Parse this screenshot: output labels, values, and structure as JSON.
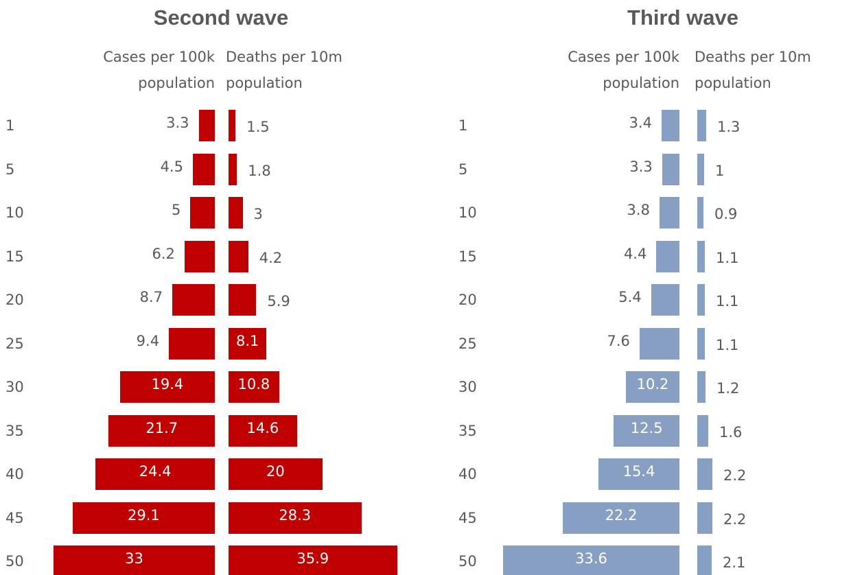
{
  "chart_data": [
    {
      "type": "butterfly",
      "title": "Second wave",
      "categories": [
        "1",
        "5",
        "10",
        "15",
        "20",
        "25",
        "30",
        "35",
        "40",
        "45",
        "50"
      ],
      "series": [
        {
          "name": "Cases per 100k population",
          "color": "#c00000",
          "values": [
            3.3,
            4.5,
            5,
            6.2,
            8.7,
            9.4,
            19.4,
            21.7,
            24.4,
            29.1,
            33
          ]
        },
        {
          "name": "Deaths per 10m population",
          "color": "#c00000",
          "values": [
            1.5,
            1.8,
            3,
            4.2,
            5.9,
            8.1,
            10.8,
            14.6,
            20,
            28.3,
            35.9
          ]
        }
      ]
    },
    {
      "type": "butterfly",
      "title": "Third wave",
      "categories": [
        "1",
        "5",
        "10",
        "15",
        "20",
        "25",
        "30",
        "35",
        "40",
        "45",
        "50"
      ],
      "series": [
        {
          "name": "Cases per 100k population",
          "color": "#879fc2",
          "values": [
            3.4,
            3.3,
            3.8,
            4.4,
            5.4,
            7.6,
            10.2,
            12.5,
            15.4,
            22.2,
            33.6
          ]
        },
        {
          "name": "Deaths per 10m population",
          "color": "#879fc2",
          "values": [
            1.3,
            1,
            0.9,
            1.1,
            1.1,
            1.1,
            1.2,
            1.6,
            2.2,
            2.2,
            2.1
          ]
        }
      ]
    }
  ]
}
